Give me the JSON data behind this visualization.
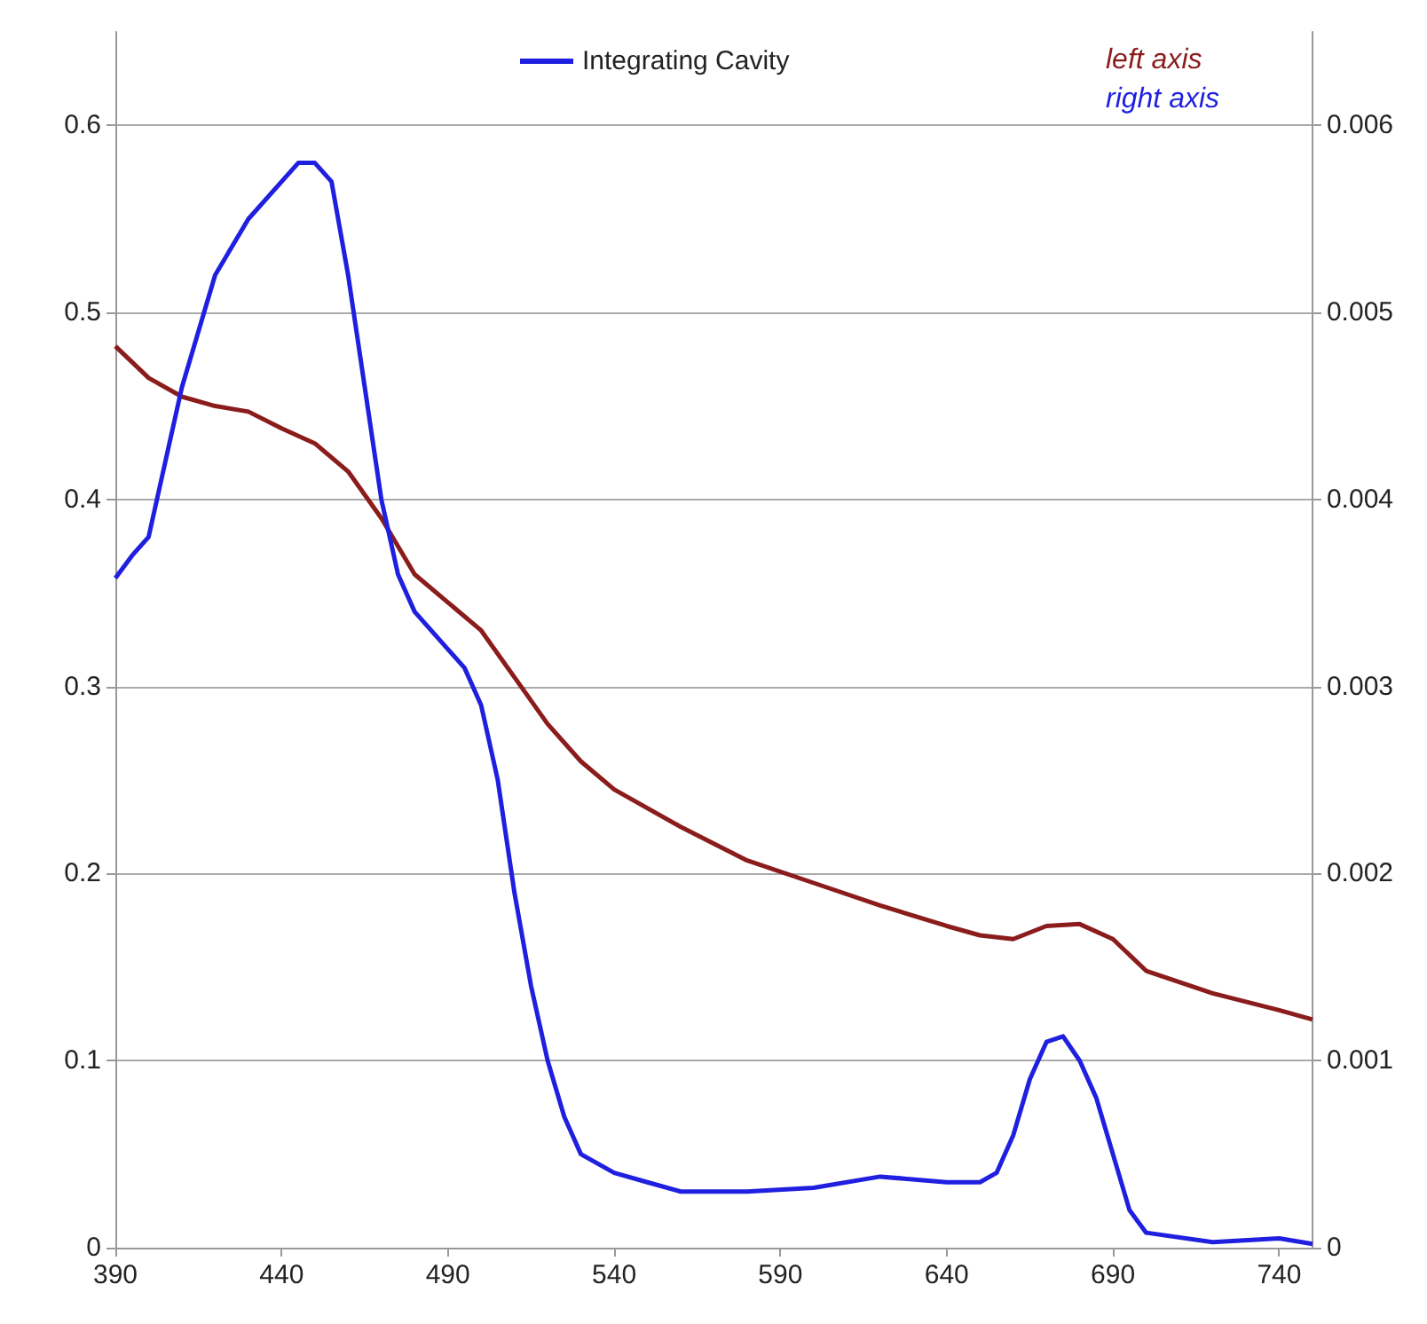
{
  "chart_data": {
    "type": "line",
    "xlim": [
      390,
      750
    ],
    "xticks": [
      390,
      440,
      490,
      540,
      590,
      640,
      690,
      740
    ],
    "ylim": [
      0,
      0.65
    ],
    "yticks": [
      0,
      0.1,
      0.2,
      0.3,
      0.4,
      0.5,
      0.6
    ],
    "y2lim": [
      0,
      0.0065
    ],
    "y2ticks": [
      0,
      0.001,
      0.002,
      0.003,
      0.004,
      0.005,
      0.006
    ],
    "grid": "y",
    "legend": "top",
    "marker": "none",
    "line_style": "solid",
    "annotations": [
      "left axis",
      "right axis"
    ],
    "series": [
      {
        "color": "#8b1c1c",
        "x": [
          390,
          400,
          410,
          420,
          430,
          440,
          450,
          460,
          470,
          480,
          490,
          500,
          510,
          520,
          530,
          540,
          560,
          580,
          600,
          620,
          640,
          650,
          660,
          670,
          680,
          690,
          700,
          720,
          740,
          750
        ],
        "values": [
          0.482,
          0.465,
          0.455,
          0.45,
          0.447,
          0.438,
          0.43,
          0.415,
          0.39,
          0.36,
          0.345,
          0.33,
          0.305,
          0.28,
          0.26,
          0.245,
          0.225,
          0.207,
          0.195,
          0.183,
          0.172,
          0.167,
          0.165,
          0.172,
          0.173,
          0.165,
          0.148,
          0.136,
          0.127,
          0.122
        ]
      },
      {
        "name": "Integrating Cavity",
        "color": "#1f1fe0",
        "axis": "y2",
        "x": [
          390,
          395,
          400,
          405,
          410,
          420,
          430,
          440,
          445,
          450,
          455,
          460,
          465,
          470,
          475,
          480,
          490,
          495,
          500,
          505,
          510,
          515,
          520,
          525,
          530,
          540,
          550,
          560,
          580,
          600,
          620,
          640,
          650,
          655,
          660,
          665,
          670,
          675,
          680,
          685,
          690,
          695,
          700,
          720,
          740,
          750
        ],
        "values": [
          0.00358,
          0.0037,
          0.0038,
          0.0042,
          0.0046,
          0.0052,
          0.0055,
          0.0057,
          0.0058,
          0.0058,
          0.0057,
          0.0052,
          0.0046,
          0.004,
          0.0036,
          0.0034,
          0.0032,
          0.0031,
          0.0029,
          0.0025,
          0.0019,
          0.0014,
          0.001,
          0.0007,
          0.0005,
          0.0004,
          0.00035,
          0.0003,
          0.0003,
          0.00032,
          0.00038,
          0.00035,
          0.00035,
          0.0004,
          0.0006,
          0.0009,
          0.0011,
          0.00113,
          0.001,
          0.0008,
          0.0005,
          0.0002,
          8e-05,
          3e-05,
          5e-05,
          2e-05
        ]
      }
    ]
  }
}
